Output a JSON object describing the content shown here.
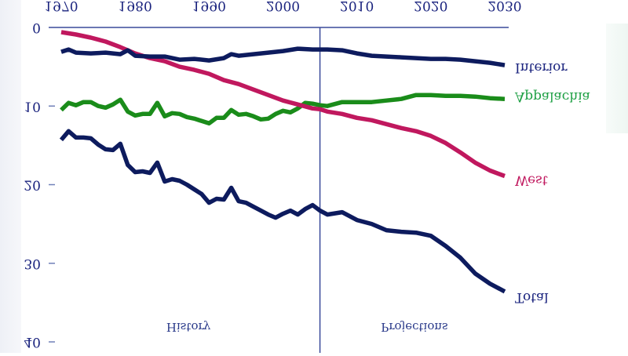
{
  "chart_data": {
    "type": "line",
    "title": "",
    "xlabel": "",
    "ylabel": "",
    "orientation_note": "rendered vertically flipped",
    "xlim": [
      1970,
      2030
    ],
    "ylim": [
      0,
      40
    ],
    "x_ticks": [
      "1970",
      "1980",
      "1990",
      "2000",
      "2010",
      "2020",
      "2030"
    ],
    "y_ticks": [
      "0",
      "10",
      "20",
      "30",
      "40"
    ],
    "grid": false,
    "divider_year": 2005,
    "region_labels": {
      "left": "History",
      "right": "Projections"
    },
    "series": [
      {
        "name": "Total",
        "color": "#0d1b5e",
        "x": [
          1970,
          1971,
          1972,
          1973,
          1974,
          1975,
          1976,
          1977,
          1978,
          1979,
          1980,
          1981,
          1982,
          1983,
          1984,
          1985,
          1986,
          1987,
          1988,
          1989,
          1990,
          1991,
          1992,
          1993,
          1994,
          1995,
          1996,
          1997,
          1998,
          1999,
          2000,
          2001,
          2002,
          2003,
          2004,
          2005,
          2006,
          2008,
          2010,
          2012,
          2014,
          2016,
          2018,
          2020,
          2022,
          2024,
          2026,
          2028,
          2030
        ],
        "values": [
          14.3,
          13.2,
          14.0,
          14.0,
          14.1,
          14.9,
          15.5,
          15.6,
          14.8,
          17.5,
          18.4,
          18.3,
          18.5,
          17.2,
          19.6,
          19.3,
          19.5,
          20.0,
          20.6,
          21.2,
          22.3,
          21.8,
          21.9,
          20.4,
          22.1,
          22.3,
          22.8,
          23.3,
          23.8,
          24.2,
          23.7,
          23.3,
          23.8,
          23.1,
          22.6,
          23.3,
          23.8,
          23.5,
          24.5,
          25.0,
          25.8,
          26.0,
          26.1,
          26.5,
          27.8,
          29.3,
          31.3,
          32.6,
          33.6
        ]
      },
      {
        "name": "Appalachia",
        "color": "#1a8c1a",
        "x": [
          1970,
          1971,
          1972,
          1973,
          1974,
          1975,
          1976,
          1977,
          1978,
          1979,
          1980,
          1981,
          1982,
          1983,
          1984,
          1985,
          1986,
          1987,
          1988,
          1989,
          1990,
          1991,
          1992,
          1993,
          1994,
          1995,
          1996,
          1997,
          1998,
          1999,
          2000,
          2001,
          2002,
          2003,
          2004,
          2005,
          2006,
          2008,
          2010,
          2012,
          2014,
          2016,
          2018,
          2020,
          2022,
          2024,
          2026,
          2028,
          2030
        ],
        "values": [
          10.5,
          9.6,
          9.9,
          9.5,
          9.5,
          10.0,
          10.2,
          9.8,
          9.2,
          10.7,
          11.2,
          11.0,
          11.0,
          9.6,
          11.3,
          10.9,
          11.0,
          11.4,
          11.6,
          11.9,
          12.2,
          11.5,
          11.5,
          10.5,
          11.1,
          11.0,
          11.3,
          11.7,
          11.6,
          11.0,
          10.6,
          10.8,
          10.3,
          9.6,
          9.7,
          9.9,
          10.0,
          9.5,
          9.5,
          9.5,
          9.3,
          9.1,
          8.6,
          8.6,
          8.7,
          8.7,
          8.8,
          9.0,
          9.1
        ]
      },
      {
        "name": "West",
        "color": "#c0185e",
        "x": [
          1970,
          1972,
          1974,
          1976,
          1978,
          1980,
          1982,
          1984,
          1986,
          1988,
          1990,
          1992,
          1994,
          1996,
          1998,
          2000,
          2002,
          2004,
          2005,
          2006,
          2008,
          2010,
          2012,
          2014,
          2016,
          2018,
          2020,
          2022,
          2024,
          2026,
          2028,
          2030
        ],
        "values": [
          0.6,
          0.9,
          1.3,
          1.8,
          2.5,
          3.3,
          3.9,
          4.3,
          5.0,
          5.4,
          5.9,
          6.7,
          7.2,
          7.9,
          8.6,
          9.3,
          9.8,
          10.3,
          10.4,
          10.7,
          11.0,
          11.5,
          11.8,
          12.3,
          12.8,
          13.2,
          13.8,
          14.7,
          15.9,
          17.2,
          18.2,
          18.9
        ]
      },
      {
        "name": "Interior",
        "color": "#0d1b5e",
        "x": [
          1970,
          1971,
          1972,
          1974,
          1976,
          1978,
          1979,
          1980,
          1982,
          1984,
          1986,
          1988,
          1990,
          1992,
          1993,
          1994,
          1996,
          1998,
          2000,
          2002,
          2004,
          2006,
          2008,
          2010,
          2012,
          2014,
          2016,
          2018,
          2020,
          2022,
          2024,
          2026,
          2028,
          2030
        ],
        "values": [
          3.1,
          2.8,
          3.2,
          3.3,
          3.2,
          3.4,
          2.9,
          3.6,
          3.7,
          3.7,
          4.1,
          4.0,
          4.2,
          3.9,
          3.4,
          3.6,
          3.4,
          3.2,
          3.0,
          2.7,
          2.8,
          2.8,
          2.9,
          3.3,
          3.6,
          3.7,
          3.8,
          3.9,
          4.0,
          4.0,
          4.1,
          4.3,
          4.5,
          4.8
        ]
      }
    ]
  }
}
